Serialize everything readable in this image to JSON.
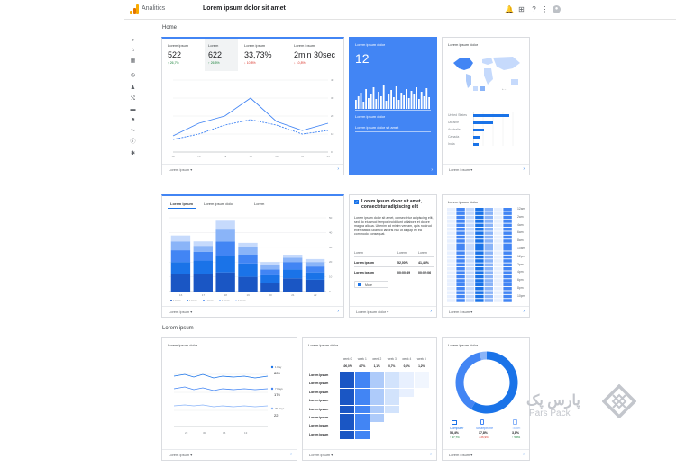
{
  "topbar": {
    "app_name": "Analitics",
    "property_name": "Lorem ipsum dolor sit amet",
    "icons": [
      "bell-icon",
      "apps-grid-icon",
      "help-icon",
      "more-vert-icon",
      "account-icon"
    ]
  },
  "sidebar": {
    "icons": [
      "search-icon",
      "home-icon",
      "customization-icon",
      "clock-icon",
      "person-icon",
      "acquisition-icon",
      "behavior-icon",
      "flag-icon",
      "segment-icon",
      "lightbulb-icon",
      "settings-icon"
    ]
  },
  "home": {
    "section_title": "Home",
    "kpi_card": {
      "kpis": [
        {
          "label": "Lorem ipsum",
          "value": "522",
          "delta": "↑ 26,7%",
          "delta_color": "#188038"
        },
        {
          "label": "Lorem",
          "value": "622",
          "delta": "↑ 26,5%",
          "delta_color": "#188038"
        },
        {
          "label": "Lorem ipsum",
          "value": "33,73%",
          "delta": "↓ 10,8%",
          "delta_color": "#d93025"
        },
        {
          "label": "Lorem ipsum",
          "value": "2min 30sec",
          "delta": "↓ 10,8%",
          "delta_color": "#d93025"
        }
      ],
      "footer_label": "Lorem ipsum"
    },
    "blue_card": {
      "title": "Lorem ipsum dolor",
      "value": "12",
      "link1": "Lorem ipsum dolor",
      "link2": "Lorem ipsum dolor sit amet"
    },
    "geo_card": {
      "title": "Lorem ipsum dolor",
      "footer_label": "Lorem ipsum"
    }
  },
  "middle": {
    "bar_card": {
      "tabs": [
        "Lorem ipsum",
        "Lorem ipsum dolor",
        "Lorem"
      ],
      "legend": [
        "Lorem",
        "Lorem",
        "Lorem",
        "Lorem",
        "Lorem"
      ],
      "footer_label": "Lorem ipsum"
    },
    "text_card": {
      "title": "Lorem ipsum dolor sit amet, consectetur adipiscing elit",
      "body": "Lorem ipsum dolor sit amet, consectetur adipiscing elit, sed do eiusmod tempor incididunt ut labore et dolore magna aliqua. Ut enim ad minim veniam, quis nostrud exercitation ullamco laboris nisi ut aliquip ex ea commodo consequat.",
      "table": [
        {
          "label": "Lorem",
          "c1": "Lorem",
          "c2": "Lorem"
        },
        {
          "label": "Lorem ipsum",
          "c1": "52,00%",
          "c2": "41,43%"
        },
        {
          "label": "Lorem ipsum",
          "c1": "00:00:39",
          "c2": "00:02:06"
        }
      ],
      "select_label": "More",
      "footer_label": "Lorem ipsum dolor"
    },
    "heatmap_card": {
      "title": "Lorem ipsum dolor",
      "hours": [
        "12am",
        "2am",
        "4am",
        "6am",
        "8am",
        "10am",
        "12pm",
        "2pm",
        "4pm",
        "6pm",
        "8pm",
        "10pm"
      ],
      "footer_label": "Lorem ipsum"
    }
  },
  "bottom": {
    "section_title": "Lorem ipsum",
    "line_card": {
      "title": "Lorem ipsum dolor",
      "footer_label": "Lorem ipsum"
    },
    "cohort_card": {
      "title": "Lorem ipsum dolor",
      "weeks": [
        "week 0",
        "week 1",
        "week 2",
        "week 3",
        "week 4",
        "week 5"
      ],
      "header_values": [
        "100,0%",
        "4,7%",
        "1,1%",
        "0,7%",
        "0,8%",
        "1,2%"
      ],
      "row_label": "Lorem ipsum",
      "footer_label": "Lorem ipsum"
    },
    "donut_card": {
      "title": "Lorem ipsum dolor",
      "devices": [
        {
          "label": "Computer",
          "value": "58,4%",
          "delta": "↑ 37,7%",
          "color": "#1a73e8"
        },
        {
          "label": "Smartphone",
          "value": "37,8%",
          "delta": "↓ 26,9%",
          "color": "#4285f4"
        },
        {
          "label": "Tablet",
          "value": "3,8%",
          "delta": "↑ 5,9%",
          "color": "#8ab4f8"
        }
      ],
      "footer_label": "Lorem ipsum"
    }
  },
  "watermark": {
    "text_fa": "پارس پک",
    "text_en": "Pars Pack"
  },
  "chart_data": [
    {
      "type": "line",
      "x": [
        "16",
        "17",
        "18",
        "19",
        "20",
        "21",
        "22"
      ],
      "series": [
        {
          "values": [
            9,
            16,
            20,
            30,
            17,
            12,
            16
          ]
        },
        {
          "values": [
            7,
            10,
            15,
            18,
            15,
            10,
            12
          ]
        }
      ],
      "ylim": [
        0,
        40
      ]
    },
    {
      "type": "bar",
      "x": [
        "16",
        "17",
        "18",
        "19",
        "20",
        "21",
        "22"
      ],
      "series": [
        {
          "values": [
            12,
            12,
            13,
            10,
            6,
            9,
            8
          ]
        },
        {
          "values": [
            8,
            9,
            11,
            9,
            5,
            6,
            5
          ]
        },
        {
          "values": [
            8,
            6,
            10,
            6,
            4,
            5,
            4
          ]
        },
        {
          "values": [
            6,
            4,
            8,
            5,
            3,
            3,
            3
          ]
        },
        {
          "values": [
            4,
            3,
            6,
            3,
            2,
            2,
            2
          ]
        }
      ],
      "ylim": [
        0,
        50
      ]
    },
    {
      "type": "donut",
      "categories": [
        "Computer",
        "Smartphone",
        "Tablet"
      ],
      "values": [
        58.4,
        37.8,
        3.8
      ]
    }
  ]
}
